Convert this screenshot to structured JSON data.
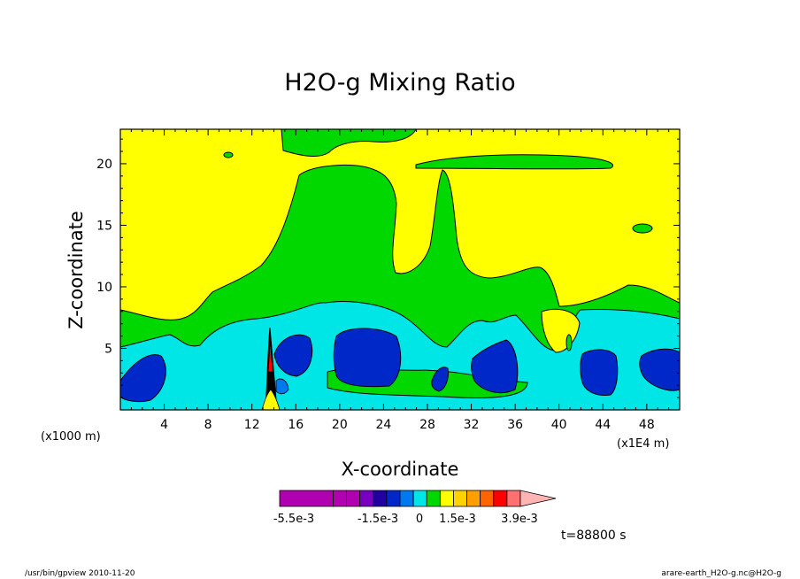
{
  "chart_data": {
    "type": "contour",
    "title": "H2O-g Mixing Ratio",
    "xlabel": "X-coordinate",
    "ylabel": "Z-coordinate",
    "x_unit": "(x1E4 m)",
    "y_unit": "(x1000 m)",
    "xlim": [
      0,
      51
    ],
    "ylim": [
      0,
      22.8
    ],
    "x_ticks": [
      4,
      8,
      12,
      16,
      20,
      24,
      28,
      32,
      36,
      40,
      44,
      48
    ],
    "y_ticks": [
      5,
      10,
      15,
      20
    ],
    "time_label": "t=88800 s",
    "colorbar": {
      "colors": [
        "#b000b0",
        "#b000b0",
        "#b000b0",
        "#7800c0",
        "#2000a0",
        "#0028c8",
        "#0078f0",
        "#00e6e6",
        "#00d800",
        "#ffff00",
        "#ffd200",
        "#ffa000",
        "#ff6400",
        "#ff0000",
        "#ff7070",
        "#ffb4b4"
      ],
      "tick_labels": [
        "-5.5e-3",
        "-1.5e-3",
        "0",
        "1.5e-3",
        "3.9e-3"
      ]
    }
  },
  "footer": {
    "left": "/usr/bin/gpview   2010-11-20",
    "right": "arare-earth_H2O-g.nc@H2O-g"
  }
}
